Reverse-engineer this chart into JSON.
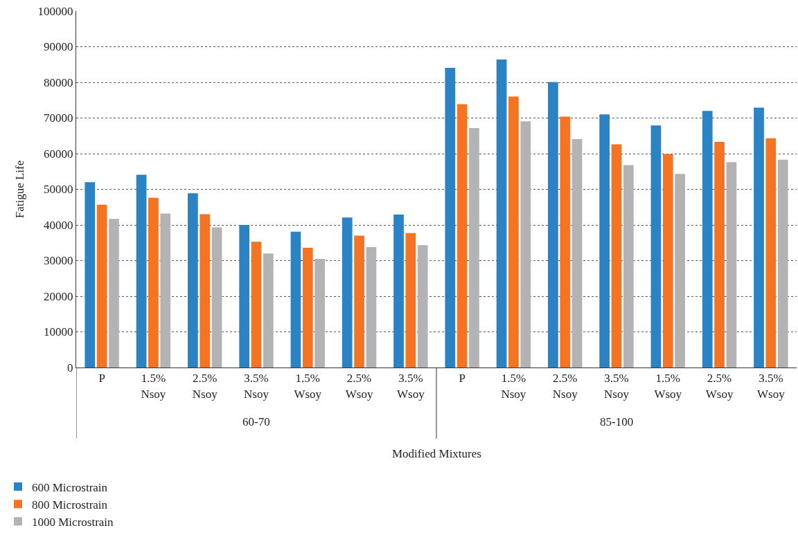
{
  "chart_data": {
    "type": "bar",
    "xlabel": "Modified Mixtures",
    "ylabel": "Fatigue Life",
    "categories": [
      "P",
      "1.5% Nsoy",
      "2.5% Nsoy",
      "3.5% Nsoy",
      "1.5% Wsoy",
      "2.5% Wsoy",
      "3.5% Wsoy",
      "P",
      "1.5% Nsoy",
      "2.5% Nsoy",
      "3.5% Nsoy",
      "1.5% Wsoy",
      "2.5% Wsoy",
      "3.5% Wsoy"
    ],
    "series": [
      {
        "name": "600 Microstrain",
        "color": "#2b83c3",
        "values": [
          52000,
          54100,
          48900,
          40000,
          38100,
          42100,
          42900,
          84100,
          86400,
          80100,
          71000,
          67900,
          72000,
          72900
        ]
      },
      {
        "name": "800 Microstrain",
        "color": "#f47424",
        "values": [
          45700,
          47600,
          43000,
          35300,
          33600,
          37000,
          37700,
          73900,
          76000,
          70400,
          62600,
          59900,
          63300,
          64300
        ]
      },
      {
        "name": "1000 Microstrain",
        "color": "#b3b3b6",
        "values": [
          41700,
          43200,
          39300,
          32000,
          30500,
          33800,
          34300,
          67200,
          69100,
          64100,
          56800,
          54300,
          57600,
          58300
        ]
      }
    ],
    "annotations": [
      "60-70",
      "85-100"
    ],
    "ylim": [
      0,
      100000
    ],
    "yticks": [
      0,
      10000,
      20000,
      30000,
      40000,
      50000,
      60000,
      70000,
      80000,
      90000,
      100000
    ],
    "grid": "y",
    "legend": "bottom left"
  }
}
